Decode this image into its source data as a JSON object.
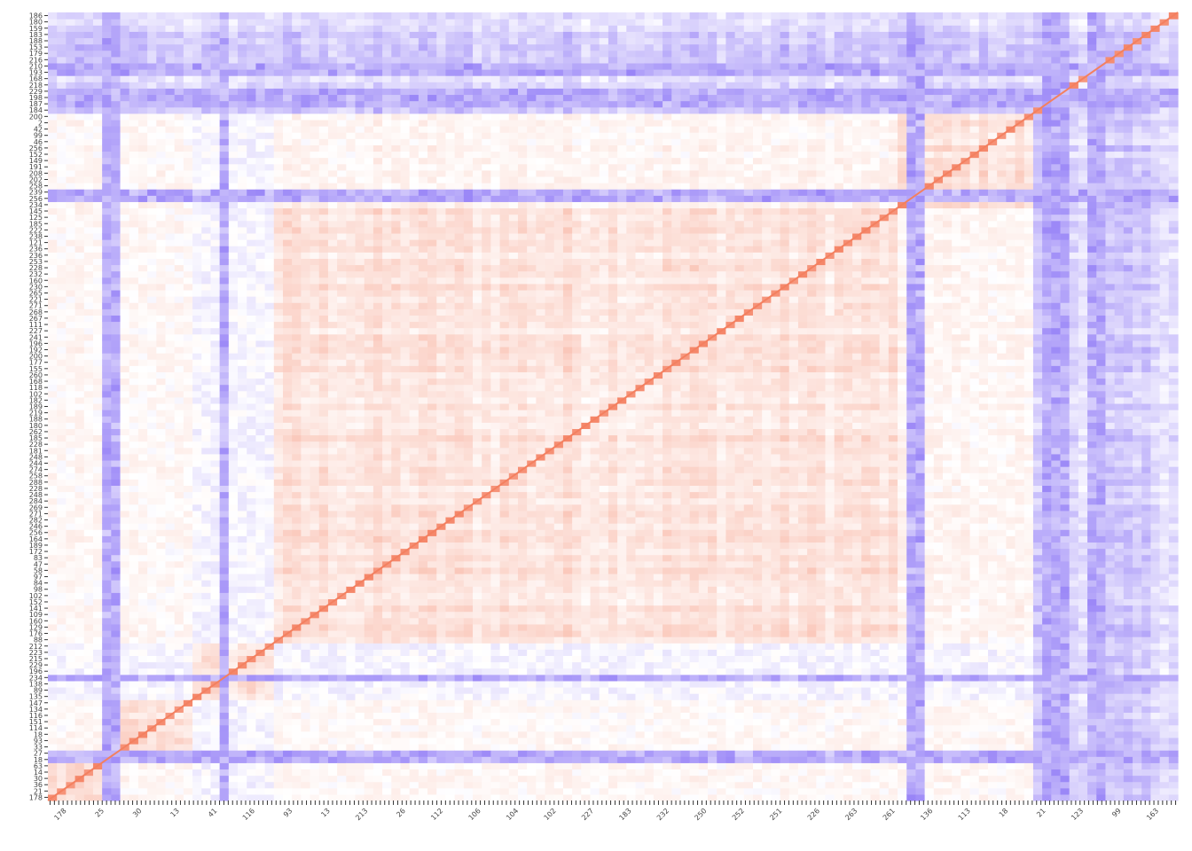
{
  "chart_data": {
    "type": "heatmap",
    "title": "",
    "xlabel": "",
    "ylabel": "",
    "value_range": [
      -1,
      1
    ],
    "colors": {
      "negative": "#5B3BF2",
      "zero": "#FFFFFF",
      "positive": "#F5876A",
      "diagonal": "#F38060"
    },
    "y_tick_labels_visible_top_to_bottom": [
      "186",
      "180",
      "159",
      "183",
      "188",
      "153",
      "179",
      "216",
      "210",
      "193",
      "168",
      "218",
      "229",
      "198",
      "187",
      "184",
      "200",
      "2",
      "42",
      "99",
      "46",
      "256",
      "152",
      "149",
      "191",
      "208",
      "202",
      "258",
      "239",
      "256",
      "234",
      "145",
      "125",
      "185",
      "222",
      "238",
      "121",
      "236",
      "236",
      "253",
      "228",
      "232",
      "160",
      "230",
      "265",
      "221",
      "271",
      "268",
      "267",
      "111",
      "227",
      "241",
      "196",
      "192",
      "200",
      "177",
      "155",
      "260",
      "168",
      "118",
      "102",
      "182",
      "189",
      "219",
      "188",
      "180",
      "262",
      "185",
      "228",
      "181",
      "248",
      "244",
      "274",
      "258",
      "288",
      "228",
      "248",
      "284",
      "269",
      "271",
      "282",
      "246",
      "256",
      "164",
      "189",
      "172",
      "83",
      "47",
      "58",
      "97",
      "84",
      "98",
      "102",
      "152",
      "141",
      "109",
      "160",
      "129",
      "176",
      "88",
      "212",
      "223",
      "215",
      "229",
      "196",
      "234",
      "138",
      "89",
      "135",
      "147",
      "134",
      "116",
      "151",
      "114",
      "18",
      "93",
      "33",
      "27",
      "18",
      "63",
      "14",
      "30",
      "36",
      "21",
      "178"
    ],
    "x_tick_labels_visible_left_to_right": [
      "178",
      "25",
      "30",
      "13",
      "41",
      "116",
      "93",
      "13",
      "213",
      "26",
      "112",
      "106",
      "104",
      "102",
      "227",
      "183",
      "232",
      "250",
      "252",
      "251",
      "226",
      "263",
      "261",
      "136",
      "113",
      "18",
      "21",
      "123",
      "99",
      "163"
    ],
    "block_structure": [
      {
        "range_fraction": [
          0.0,
          0.05
        ],
        "sign": "positive",
        "note": "bottom-left small cluster"
      },
      {
        "range_fraction": [
          0.05,
          0.13
        ],
        "sign": "positive"
      },
      {
        "range_fraction": [
          0.2,
          0.75
        ],
        "sign": "positive",
        "note": "large central cluster"
      },
      {
        "range_fraction": [
          0.75,
          0.87
        ],
        "sign": "positive",
        "note": "top-right cluster"
      },
      {
        "range_fraction": [
          0.87,
          1.0
        ],
        "sign": "negative",
        "note": "anti-correlated with rest"
      }
    ]
  }
}
